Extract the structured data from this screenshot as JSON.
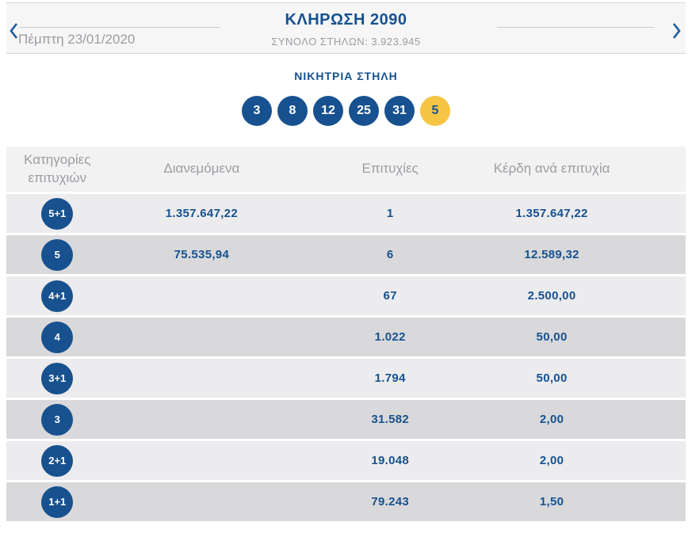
{
  "header": {
    "title": "ΚΛΗΡΩΣΗ 2090",
    "subtitle": "ΣΥΝΟΛΟ ΣΤΗΛΩΝ: 3.923.945",
    "date": "Πέμπτη 23/01/2020"
  },
  "winning": {
    "label": "ΝΙΚΗΤΡΙΑ ΣΤΗΛΗ",
    "numbers": [
      "3",
      "8",
      "12",
      "25",
      "31"
    ],
    "bonus": "5"
  },
  "table": {
    "columns": [
      "Κατηγορίες επιτυχιών",
      "Διανεμόμενα",
      "Επιτυχίες",
      "Κέρδη ανά επιτυχία"
    ],
    "rows": [
      {
        "category": "5+1",
        "distributed": "1.357.647,22",
        "winners": "1",
        "prize": "1.357.647,22"
      },
      {
        "category": "5",
        "distributed": "75.535,94",
        "winners": "6",
        "prize": "12.589,32"
      },
      {
        "category": "4+1",
        "distributed": "",
        "winners": "67",
        "prize": "2.500,00"
      },
      {
        "category": "4",
        "distributed": "",
        "winners": "1.022",
        "prize": "50,00"
      },
      {
        "category": "3+1",
        "distributed": "",
        "winners": "1.794",
        "prize": "50,00"
      },
      {
        "category": "3",
        "distributed": "",
        "winners": "31.582",
        "prize": "2,00"
      },
      {
        "category": "2+1",
        "distributed": "",
        "winners": "19.048",
        "prize": "2,00"
      },
      {
        "category": "1+1",
        "distributed": "",
        "winners": "79.243",
        "prize": "1,50"
      }
    ]
  },
  "colors": {
    "brand_blue": "#17518f",
    "bonus_yellow": "#f7c544",
    "muted_gray": "#9a9da2",
    "row_light": "#ececee",
    "row_dark": "#d9d9db"
  }
}
